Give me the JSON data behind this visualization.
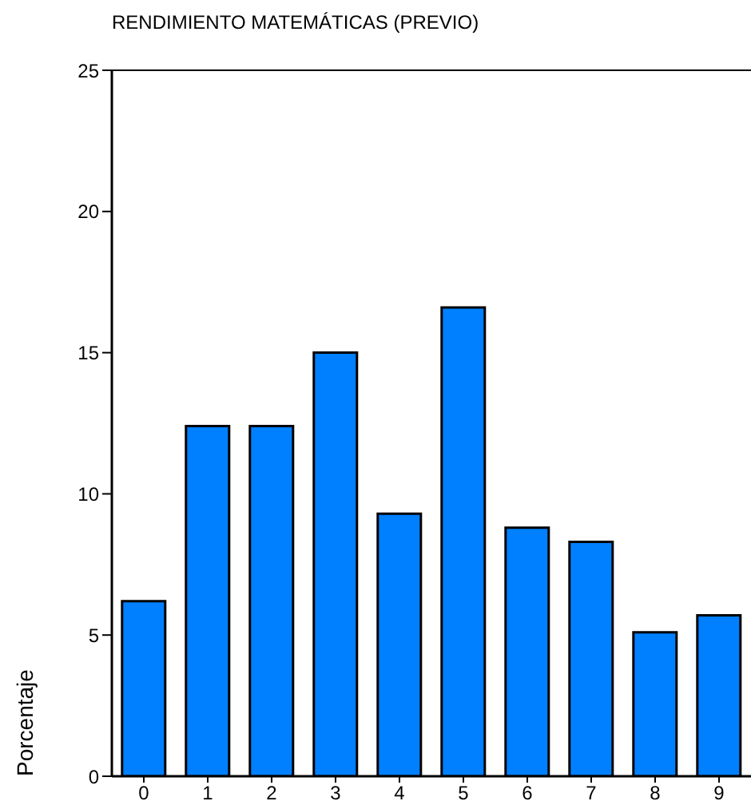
{
  "chart_data": {
    "type": "bar",
    "title": "RENDIMIENTO MATEMÁTICAS (PREVIO)",
    "ylabel": "Porcentaje",
    "categories": [
      "0",
      "1",
      "2",
      "3",
      "4",
      "5",
      "6",
      "7",
      "8",
      "9"
    ],
    "values": [
      6.2,
      12.4,
      12.4,
      15.0,
      9.3,
      16.6,
      8.8,
      8.3,
      5.1,
      5.7
    ],
    "color": "#0080ff",
    "ylim": [
      0,
      25
    ],
    "yticks": [
      0,
      5,
      10,
      15,
      20,
      25
    ],
    "grid": false
  }
}
